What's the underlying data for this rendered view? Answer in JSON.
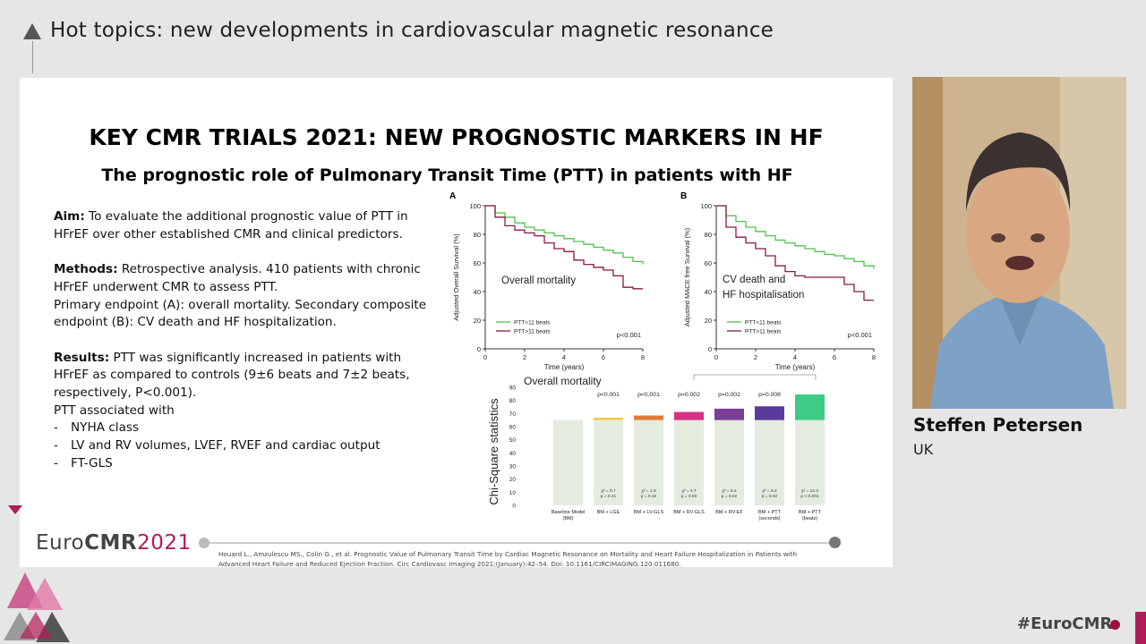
{
  "header": {
    "title": "Hot topics: new developments in cardiovascular magnetic resonance"
  },
  "slide": {
    "title": "KEY CMR TRIALS 2021: NEW PROGNOSTIC MARKERS IN HF",
    "subtitle": "The prognostic role of Pulmonary Transit Time (PTT) in patients with HF",
    "aim_label": "Aim:",
    "aim_text": " To evaluate the additional prognostic value of PTT in HFrEF over other established CMR and clinical predictors.",
    "methods_label": "Methods:",
    "methods_text": " Retrospective analysis. 410 patients with chronic HFrEF underwent CMR to assess PTT.",
    "methods_text2": "Primary endpoint (A): overall mortality. Secondary composite endpoint (B): CV death and HF hospitalization.",
    "results_label": "Results:",
    "results_text": " PTT was significantly increased in patients with HFrEF as compared to controls (9±6 beats and 7±2 beats, respectively, P<0.001).",
    "ptt_assoc": "PTT associated with",
    "bullets": [
      "NYHA class",
      "LV and RV volumes, LVEF, RVEF and cardiac output",
      "FT-GLS"
    ],
    "bullet_dash": "-",
    "reference": "Houard L., Amzulescu MS., Colin G., et al. Prognostic Value of Pulmonary Transit Time by Cardiac Magnetic Resonance on Mortality and Heart Failure Hospitalization in Patients with Advanced Heart Failure and Reduced Ejection Fraction. Circ Cardiovasc Imaging 2021;(January):42–54. Doi: 10.1161/CIRCIMAGING.120.011680.",
    "logo_euro": "Euro",
    "logo_cmr": "CMR",
    "logo_year": "2021"
  },
  "chart_data": [
    {
      "type": "line",
      "panel": "A",
      "annotation": "Overall mortality",
      "ylabel": "Adjusted Overall Survival (%)",
      "xlabel": "Time (years)",
      "xlim": [
        0,
        8
      ],
      "ylim": [
        0,
        100
      ],
      "xticks": [
        "0",
        "2",
        "4",
        "6",
        "8"
      ],
      "yticks": [
        "0",
        "20",
        "40",
        "60",
        "80",
        "100"
      ],
      "pvalue": "p<0.001",
      "series": [
        {
          "name": "PTT<11 beats",
          "color": "#4fc24a",
          "x": [
            0,
            0.5,
            1,
            1.5,
            2,
            2.5,
            3,
            3.5,
            4,
            4.5,
            5,
            5.5,
            6,
            6.5,
            7,
            7.5,
            8
          ],
          "y": [
            100,
            95,
            92,
            88,
            85,
            83,
            81,
            79,
            77,
            75,
            73,
            71,
            69,
            67,
            64,
            61,
            59
          ]
        },
        {
          "name": "PTT>11 beats",
          "color": "#8b1a3a",
          "x": [
            0,
            0.5,
            1,
            1.5,
            2,
            2.5,
            3,
            3.5,
            4,
            4.5,
            5,
            5.5,
            6,
            6.5,
            7,
            7.5,
            8
          ],
          "y": [
            100,
            92,
            86,
            83,
            81,
            79,
            74,
            70,
            68,
            62,
            59,
            57,
            55,
            51,
            43,
            42,
            42
          ]
        }
      ]
    },
    {
      "type": "line",
      "panel": "B",
      "annotation": "CV death and HF hospitalisation",
      "ylabel": "Adjusted MACE free Survival (%)",
      "xlabel": "Time (years)",
      "xlim": [
        0,
        8
      ],
      "ylim": [
        0,
        100
      ],
      "xticks": [
        "0",
        "2",
        "4",
        "6",
        "8"
      ],
      "yticks": [
        "0",
        "20",
        "40",
        "60",
        "80",
        "100"
      ],
      "pvalue": "p<0.001",
      "series": [
        {
          "name": "PTT<11 beats",
          "color": "#4fc24a",
          "x": [
            0,
            0.5,
            1,
            1.5,
            2,
            2.5,
            3,
            3.5,
            4,
            4.5,
            5,
            5.5,
            6,
            6.5,
            7,
            7.5,
            8
          ],
          "y": [
            100,
            93,
            89,
            85,
            82,
            79,
            76,
            74,
            72,
            70,
            68,
            66,
            65,
            63,
            61,
            58,
            56
          ]
        },
        {
          "name": "PTT>11 beats",
          "color": "#8b1a3a",
          "x": [
            0,
            0.5,
            1,
            1.5,
            2,
            2.5,
            3,
            3.5,
            4,
            4.5,
            5,
            5.5,
            6,
            6.5,
            7,
            7.5,
            8
          ],
          "y": [
            100,
            85,
            78,
            74,
            70,
            65,
            58,
            54,
            51,
            50,
            50,
            50,
            50,
            45,
            40,
            34,
            34
          ]
        }
      ]
    },
    {
      "type": "bar",
      "title": "Overall mortality",
      "ylabel": "Chi-Square statistics",
      "ylim": [
        0,
        90
      ],
      "yticks": [
        "0",
        "10",
        "20",
        "30",
        "40",
        "50",
        "60",
        "70",
        "80",
        "90"
      ],
      "baseline_value": 65,
      "base_color": "#e3ecdf",
      "categories": [
        "Baseline Model (BM)",
        "BM + LGE",
        "BM + LV-GLS",
        "BM + RV-GLS",
        "BM + RV-EF",
        "BM + PTT (seconds)",
        "BM + PTT (beats)"
      ],
      "totals": [
        65,
        66.8,
        68.5,
        71.2,
        73.7,
        75.5,
        84.5
      ],
      "increment_colors": [
        "",
        "#f2c94c",
        "#e07b3a",
        "#d63384",
        "#7b3f98",
        "#5b3a9e",
        "#3dcb86"
      ],
      "pvalues_top": [
        "",
        "p<0.001",
        "p<0.001",
        "p=0.002",
        "p=0.002",
        "p=0.008",
        ""
      ],
      "chi_labels": [
        "",
        "χ² = 0.7",
        "χ² = 1.9",
        "χ² = 4.7",
        "χ² = 5.1",
        "χ² = 5.2",
        "χ² = 12.3"
      ],
      "p_labels": [
        "",
        "p = 0.41",
        "p = 0.16",
        "p = 0.03",
        "p = 0.02",
        "p = 0.02",
        "p < 0.001"
      ]
    }
  ],
  "speaker": {
    "name": "Steffen Petersen",
    "country": "UK"
  },
  "footer": {
    "hashtag": "#EuroCMR"
  }
}
